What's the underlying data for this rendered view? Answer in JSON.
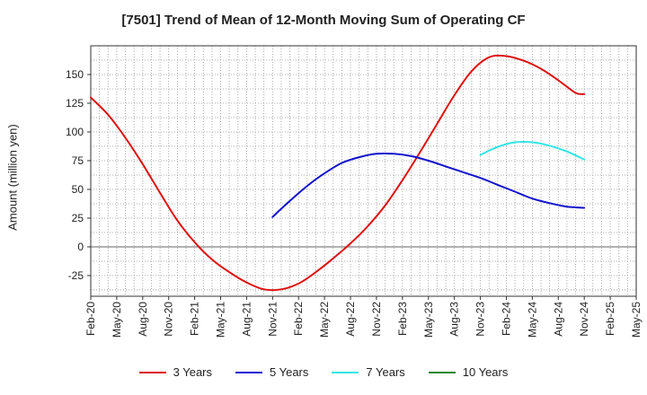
{
  "chart_data": {
    "type": "line",
    "title": "[7501]  Trend of Mean of 12-Month Moving Sum of Operating CF",
    "xlabel": "",
    "ylabel": "Amount (million yen)",
    "ylim": [
      -43,
      175
    ],
    "yticks": [
      -25,
      0,
      25,
      50,
      75,
      100,
      125,
      150
    ],
    "x_tick_labels": [
      "Feb-20",
      "May-20",
      "Aug-20",
      "Nov-20",
      "Feb-21",
      "May-21",
      "Aug-21",
      "Nov-21",
      "Feb-22",
      "May-22",
      "Aug-22",
      "Nov-22",
      "Feb-23",
      "May-23",
      "Aug-23",
      "Nov-23",
      "Feb-24",
      "May-24",
      "Aug-24",
      "Nov-24",
      "Feb-25",
      "May-25"
    ],
    "x_index_range": [
      0,
      63
    ],
    "grid": true,
    "legend_position": "bottom",
    "series": [
      {
        "name": "3 Years",
        "color": "#dd1111",
        "x": [
          0,
          2,
          4,
          6,
          8,
          10,
          12,
          14,
          16,
          18,
          20,
          22,
          24,
          26,
          28,
          30,
          32,
          34,
          36,
          38,
          40,
          42,
          44,
          46,
          48,
          50,
          52,
          54,
          56,
          57
        ],
        "values": [
          130,
          115,
          95,
          72,
          47,
          23,
          4,
          -11,
          -22,
          -31,
          -37,
          -37,
          -32,
          -22,
          -10,
          3,
          18,
          36,
          58,
          82,
          107,
          132,
          153,
          165,
          166,
          162,
          155,
          145,
          134,
          133
        ]
      },
      {
        "name": "5 Years",
        "color": "#1111cc",
        "x": [
          21,
          23,
          25,
          27,
          29,
          31,
          33,
          35,
          37,
          39,
          41,
          43,
          45,
          47,
          49,
          51,
          53,
          55,
          57
        ],
        "values": [
          26,
          40,
          53,
          64,
          73,
          78,
          81,
          81,
          79,
          75,
          70,
          65,
          60,
          54,
          48,
          42,
          38,
          35,
          34
        ]
      },
      {
        "name": "7 Years",
        "color": "#33e5e5",
        "x": [
          45,
          47,
          49,
          51,
          53,
          55,
          57
        ],
        "values": [
          80,
          87,
          91,
          91,
          88,
          83,
          76
        ]
      },
      {
        "name": "10 Years",
        "color": "#228822",
        "x": [],
        "values": []
      }
    ]
  }
}
